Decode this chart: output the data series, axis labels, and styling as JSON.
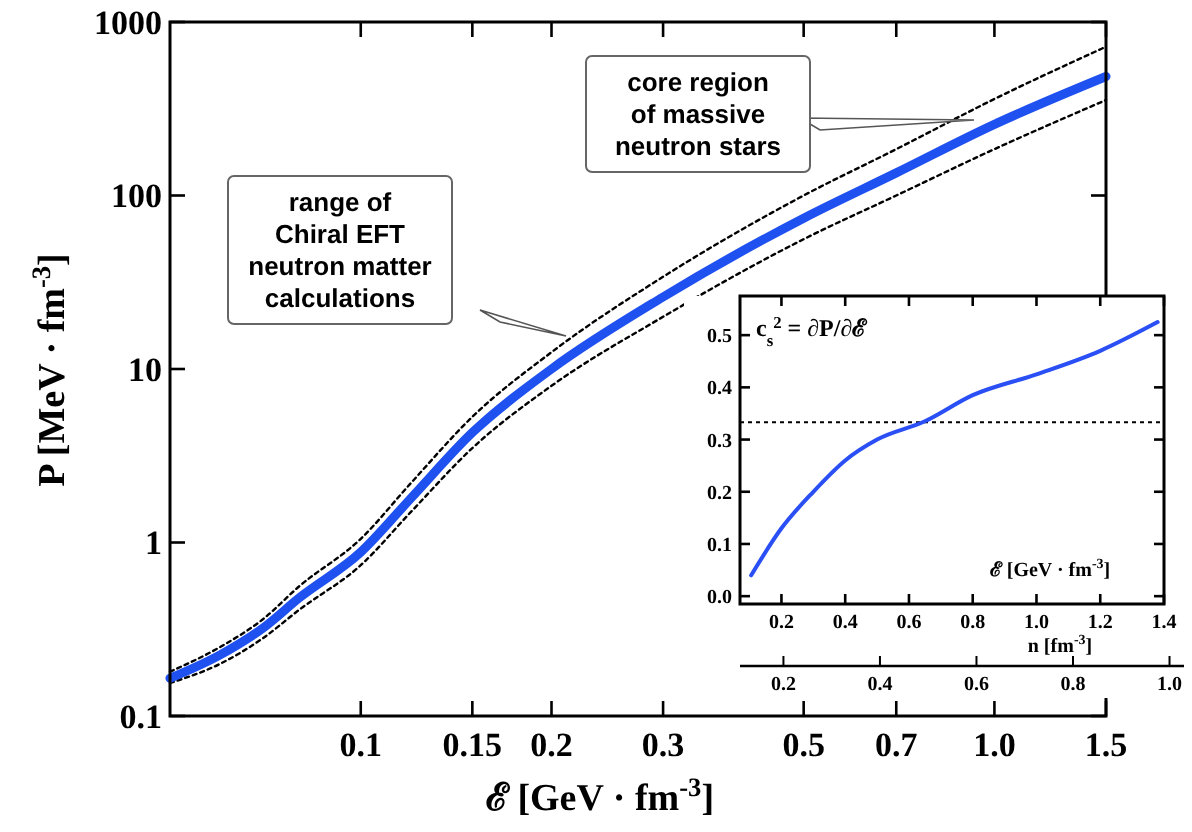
{
  "chart_data": [
    {
      "type": "line",
      "xlabel": "ℰ  [GeV · fm$^{-3}$]",
      "ylabel": "P  [MeV · fm$^{-3}$]",
      "log": "xy",
      "xlim": [
        0.05,
        1.5
      ],
      "ylim": [
        0.1,
        1000
      ],
      "xticks": [
        0.1,
        0.15,
        0.2,
        0.3,
        0.5,
        0.7,
        {
          "value": 1.0,
          "label": "1.0"
        },
        1.5
      ],
      "yticks": [
        0.1,
        1,
        10,
        100,
        1000
      ],
      "x": [
        0.05,
        0.06,
        0.07,
        0.08,
        0.1,
        0.12,
        0.15,
        0.2,
        0.3,
        0.5,
        0.7,
        1.0,
        1.5
      ],
      "series": [
        {
          "color": "#000000",
          "line_style": "dotted",
          "values": [
            0.155,
            0.2,
            0.28,
            0.41,
            0.74,
            1.5,
            3.5,
            8.0,
            20,
            56,
            100,
            185,
            355
          ]
        },
        {
          "color": "#000000",
          "line_style": "dotted",
          "values": [
            0.18,
            0.25,
            0.36,
            0.56,
            1.05,
            2.2,
            5.3,
            12.5,
            34,
            100,
            185,
            360,
            720
          ]
        },
        {
          "color": "#1f50f0",
          "line_style": "solid",
          "values": [
            0.165,
            0.225,
            0.32,
            0.48,
            0.88,
            1.8,
            4.3,
            10,
            26,
            74,
            135,
            257,
            485
          ]
        }
      ],
      "annotations": [
        "range of Chiral EFT neutron matter calculations",
        "core region of massive neutron stars"
      ]
    },
    {
      "type": "line",
      "xlabel": "ℰ  [GeV · fm$^{-3}$]",
      "x2label": "n  [fm$^{-3}$]",
      "xlim": [
        0.07,
        1.4
      ],
      "ylim": [
        -0.015,
        0.575
      ],
      "xticks": [
        0.2,
        0.4,
        0.6,
        0.8,
        {
          "value": 1.0,
          "label": "1.0"
        },
        1.2,
        1.4
      ],
      "yticks": [
        {
          "value": 0,
          "label": "0.0"
        },
        0.1,
        0.2,
        0.3,
        0.4,
        0.5
      ],
      "x2lim": [
        0.11,
        1.03
      ],
      "x2ticks": [
        0.2,
        0.4,
        0.6,
        0.8,
        {
          "value": 1.0,
          "label": "1.0"
        }
      ],
      "x": [
        0.105,
        0.2,
        0.3,
        0.4,
        0.5,
        0.65,
        0.8,
        1.0,
        1.2,
        1.38
      ],
      "series": [
        {
          "color": "#2a4ff5",
          "line_style": "solid",
          "values": [
            0.04,
            0.13,
            0.2,
            0.26,
            0.3,
            0.335,
            0.385,
            0.425,
            0.47,
            0.525
          ]
        }
      ],
      "ref_lines": [
        {
          "axis": "y",
          "value": 0.333,
          "line_style": "dotted"
        }
      ],
      "annotations": [
        "c$_{s}$$^{2}$ = ∂P/∂ℰ"
      ]
    }
  ]
}
